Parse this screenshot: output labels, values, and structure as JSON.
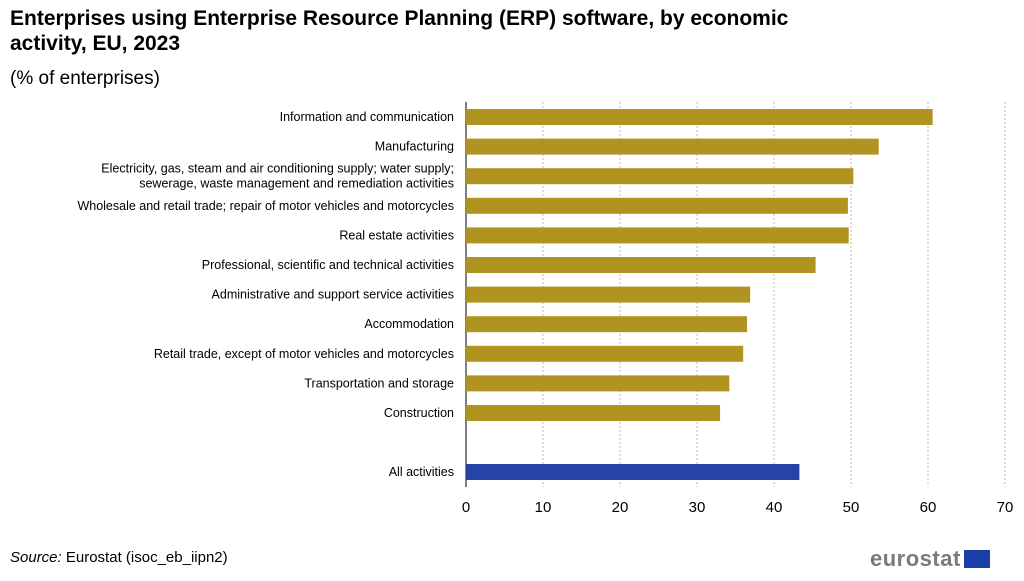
{
  "chart_data": {
    "type": "bar",
    "orientation": "horizontal",
    "title": "Enterprises using Enterprise Resource Planning (ERP) software, by economic activity, EU, 2023",
    "subtitle": "(% of enterprises)",
    "categories": [
      "Information and communication",
      "Manufacturing",
      "Electricity, gas, steam and air conditioning supply; water supply;\nsewerage, waste management and remediation activities",
      "Wholesale and retail trade; repair of motor vehicles and motorcycles",
      "Real estate activities",
      "Professional, scientific and technical activities",
      "Administrative and support service activities",
      "Accommodation",
      "Retail trade, except of motor vehicles and motorcycles",
      "Transportation and storage",
      "Construction",
      "All activities"
    ],
    "values": [
      60.6,
      53.6,
      50.3,
      49.6,
      49.7,
      45.4,
      36.9,
      36.5,
      36.0,
      34.2,
      33.0,
      43.3
    ],
    "colors": {
      "sector": "#b09321",
      "total": "#2644a7"
    },
    "xlim": [
      0,
      70
    ],
    "xticks": [
      0,
      10,
      20,
      30,
      40,
      50,
      60,
      70
    ],
    "grid": true,
    "xlabel": "",
    "ylabel": ""
  },
  "footer": {
    "source_label": "Source:",
    "source_text": " Eurostat (isoc_eb_iipn2)",
    "logo_text": "eurostat"
  }
}
